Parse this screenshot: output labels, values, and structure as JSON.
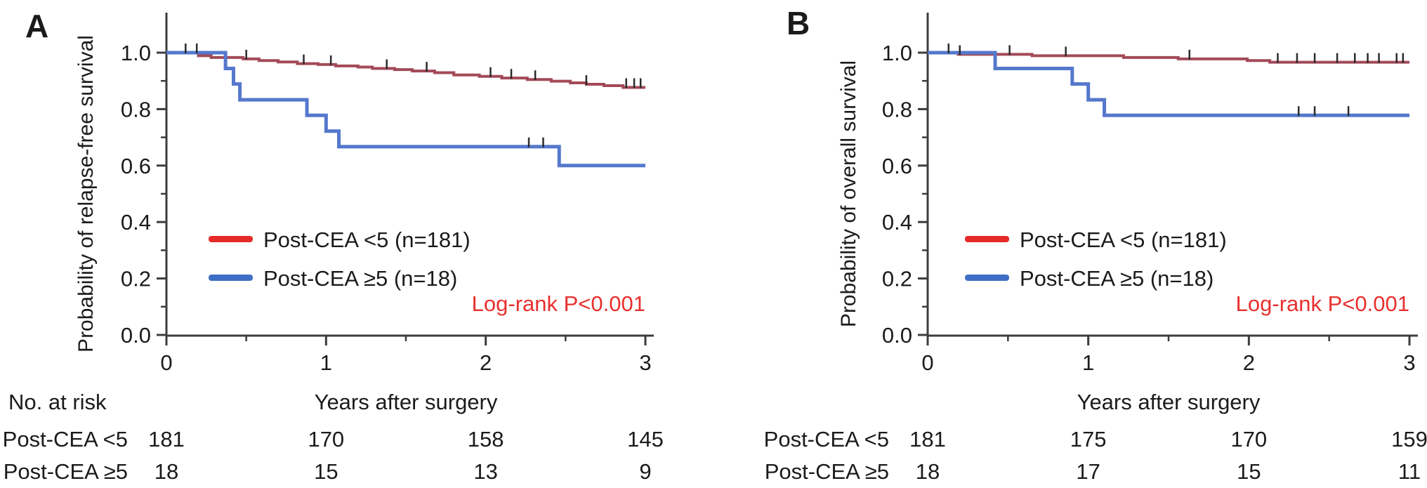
{
  "figure": {
    "background": "#ffffff",
    "text_color": "#1b1b1b",
    "axis_color": "#3c3c3c",
    "censor_color": "#2b2b2b",
    "annotation_color": "#e8302e"
  },
  "chart_data": [
    {
      "type": "line",
      "km_style": "step",
      "panel_label": "A",
      "title": "",
      "xlabel": "Years after surgery",
      "ylabel": "Probability of relapse-free survival",
      "xlim": [
        0,
        3
      ],
      "ylim": [
        0.0,
        1.0
      ],
      "xticks": [
        0,
        1,
        2,
        3
      ],
      "yticks": [
        0.0,
        0.2,
        0.4,
        0.6,
        0.8,
        1.0
      ],
      "x_minor_ticks": [
        0.5,
        1.5,
        2.5
      ],
      "y_minor_ticks": [
        0.1,
        0.3,
        0.5,
        0.7,
        0.9
      ],
      "grid": false,
      "legend_position": "inside-lower-left",
      "annotation": "Log-rank P<0.001",
      "series": [
        {
          "name": "Post-CEA <5 (n=181)",
          "curve_color": "#a34a58",
          "legend_color": "#e52b28",
          "steps": [
            [
              0,
              1.0
            ],
            [
              0.2,
              0.989
            ],
            [
              0.28,
              0.983
            ],
            [
              0.48,
              0.978
            ],
            [
              0.58,
              0.972
            ],
            [
              0.7,
              0.967
            ],
            [
              0.82,
              0.961
            ],
            [
              0.95,
              0.958
            ],
            [
              1.06,
              0.953
            ],
            [
              1.2,
              0.949
            ],
            [
              1.29,
              0.944
            ],
            [
              1.43,
              0.94
            ],
            [
              1.54,
              0.935
            ],
            [
              1.68,
              0.929
            ],
            [
              1.8,
              0.921
            ],
            [
              1.96,
              0.916
            ],
            [
              2.1,
              0.91
            ],
            [
              2.26,
              0.905
            ],
            [
              2.41,
              0.899
            ],
            [
              2.53,
              0.893
            ],
            [
              2.63,
              0.888
            ],
            [
              2.74,
              0.883
            ],
            [
              2.86,
              0.877
            ]
          ],
          "censor_x": [
            0.12,
            0.19,
            0.5,
            0.86,
            1.03,
            1.38,
            1.63,
            2.03,
            2.16,
            2.31,
            2.63,
            2.88,
            2.93,
            2.97
          ]
        },
        {
          "name": "Post-CEA ≥5 (n=18)",
          "curve_color": "#5578cd",
          "legend_color": "#3f6ec5",
          "steps": [
            [
              0,
              1.0
            ],
            [
              0.37,
              0.944
            ],
            [
              0.42,
              0.889
            ],
            [
              0.46,
              0.833
            ],
            [
              0.88,
              0.778
            ],
            [
              1.0,
              0.722
            ],
            [
              1.08,
              0.667
            ],
            [
              2.46,
              0.6
            ]
          ],
          "censor_x": [
            2.27,
            2.36
          ]
        }
      ],
      "risk_table": {
        "header": "No. at risk",
        "time_points": [
          0,
          1,
          2,
          3
        ],
        "rows": [
          {
            "label": "Post-CEA <5",
            "values": [
              "181",
              "170",
              "158",
              "145"
            ]
          },
          {
            "label": "Post-CEA ≥5",
            "values": [
              "18",
              "15",
              "13",
              "9"
            ]
          }
        ]
      }
    },
    {
      "type": "line",
      "km_style": "step",
      "panel_label": "B",
      "title": "",
      "xlabel": "Years after surgery",
      "ylabel": "Probability of overall survival",
      "xlim": [
        0,
        3
      ],
      "ylim": [
        0.0,
        1.0
      ],
      "xticks": [
        0,
        1,
        2,
        3
      ],
      "yticks": [
        0.0,
        0.2,
        0.4,
        0.6,
        0.8,
        1.0
      ],
      "x_minor_ticks": [
        0.5,
        1.5,
        2.5
      ],
      "y_minor_ticks": [
        0.1,
        0.3,
        0.5,
        0.7,
        0.9
      ],
      "grid": false,
      "legend_position": "inside-lower-left",
      "annotation": "Log-rank P<0.001",
      "series": [
        {
          "name": "Post-CEA <5 (n=181)",
          "curve_color": "#a34a58",
          "legend_color": "#e52b28",
          "steps": [
            [
              0,
              1.0
            ],
            [
              0.19,
              0.994
            ],
            [
              0.65,
              0.989
            ],
            [
              1.22,
              0.983
            ],
            [
              1.56,
              0.978
            ],
            [
              1.99,
              0.972
            ],
            [
              2.13,
              0.966
            ]
          ],
          "censor_x": [
            0.13,
            0.2,
            0.51,
            0.86,
            1.63,
            2.18,
            2.3,
            2.41,
            2.55,
            2.66,
            2.74,
            2.81,
            2.92,
            2.96
          ]
        },
        {
          "name": "Post-CEA ≥5 (n=18)",
          "curve_color": "#5578cd",
          "legend_color": "#3f6ec5",
          "steps": [
            [
              0,
              1.0
            ],
            [
              0.42,
              0.944
            ],
            [
              0.9,
              0.889
            ],
            [
              1.0,
              0.833
            ],
            [
              1.1,
              0.778
            ]
          ],
          "censor_x": [
            2.31,
            2.41,
            2.62
          ]
        }
      ],
      "risk_table": {
        "header": "",
        "time_points": [
          0,
          1,
          2,
          3
        ],
        "rows": [
          {
            "label": "Post-CEA <5",
            "values": [
              "181",
              "175",
              "170",
              "159"
            ]
          },
          {
            "label": "Post-CEA ≥5",
            "values": [
              "18",
              "17",
              "15",
              "11"
            ]
          }
        ]
      }
    }
  ]
}
